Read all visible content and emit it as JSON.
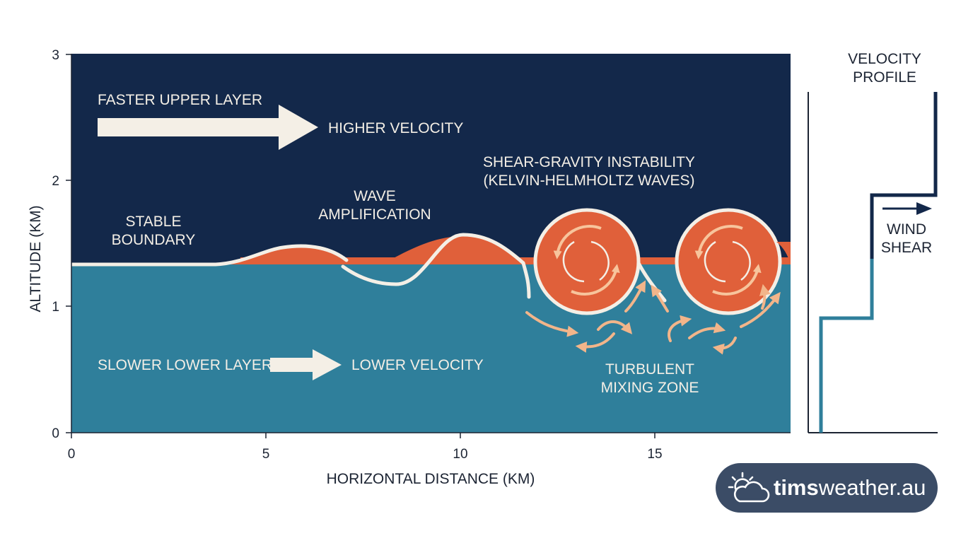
{
  "diagram": {
    "axes": {
      "y_label": "ALTITUDE (KM)",
      "x_label": "HORIZONTAL DISTANCE (KM)",
      "y_ticks": [
        "0",
        "1",
        "2",
        "3"
      ],
      "x_ticks": [
        "0",
        "5",
        "10",
        "15"
      ]
    },
    "labels": {
      "upper_layer": "FASTER UPPER LAYER",
      "higher_velocity": "HIGHER VELOCITY",
      "lower_layer": "SLOWER LOWER LAYER",
      "lower_velocity": "LOWER VELOCITY",
      "stable_line1": "STABLE",
      "stable_line2": "BOUNDARY",
      "wave_line1": "WAVE",
      "wave_line2": "AMPLIFICATION",
      "kh_line1": "SHEAR-GRAVITY INSTABILITY",
      "kh_line2": "(KELVIN-HELMHOLTZ WAVES)",
      "turb_line1": "TURBULENT",
      "turb_line2": "MIXING ZONE"
    },
    "profile": {
      "title_line1": "VELOCITY",
      "title_line2": "PROFILE",
      "shear_line1": "WIND",
      "shear_line2": "SHEAR"
    },
    "colors": {
      "upper_layer": "#13284a",
      "lower_layer": "#2f7f9b",
      "wave": "#e0603a",
      "cream": "#f4efe6",
      "turbulence_arrows": "#f2b58a"
    }
  },
  "brand": {
    "name_bold": "tims",
    "name_rest": "weather.au",
    "icon": "sun-cloud-icon"
  }
}
